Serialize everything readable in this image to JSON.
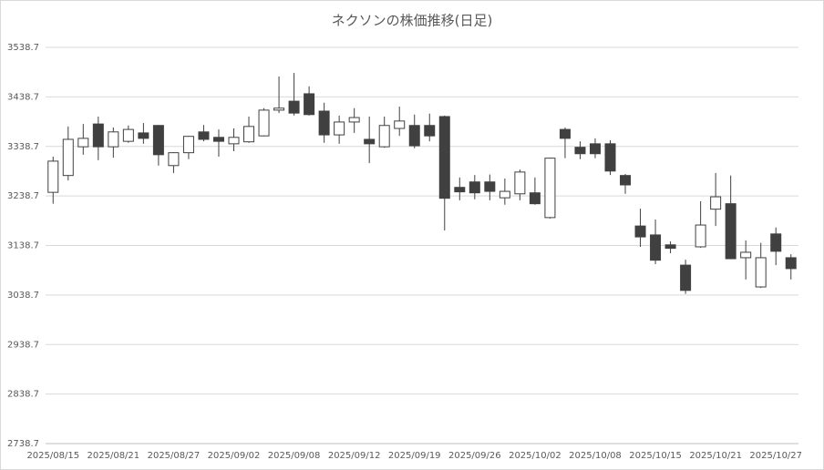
{
  "chart_data": {
    "type": "candlestick",
    "title": "ネクソンの株価推移(日足)",
    "categories": [
      "2025/08/15",
      null,
      null,
      null,
      "2025/08/21",
      null,
      null,
      null,
      "2025/08/27",
      null,
      null,
      null,
      "2025/09/02",
      null,
      null,
      null,
      "2025/09/08",
      null,
      null,
      null,
      "2025/09/12",
      null,
      null,
      null,
      "2025/09/19",
      null,
      null,
      null,
      "2025/09/26",
      null,
      null,
      null,
      "2025/10/02",
      null,
      null,
      null,
      "2025/10/08",
      null,
      null,
      null,
      "2025/10/15",
      null,
      null,
      null,
      "2025/10/21",
      null,
      null,
      null,
      "2025/10/27",
      null
    ],
    "open": [
      3246,
      3280,
      3338,
      3384,
      3338,
      3349,
      3366,
      3381,
      3300,
      3326,
      3368,
      3357,
      3344,
      3348,
      3360,
      3412,
      3430,
      3445,
      3410,
      3362,
      3388,
      3353,
      3338,
      3375,
      3381,
      3381,
      3399,
      3256,
      3267,
      3267,
      3235,
      3243,
      3245,
      3195,
      3373,
      3337,
      3344,
      3344,
      3280,
      3178,
      3160,
      3140,
      3099,
      3136,
      3212,
      3223,
      3114,
      3055,
      3162,
      3114
    ],
    "high": [
      3318,
      3379,
      3384,
      3399,
      3377,
      3381,
      3386,
      3382,
      3327,
      3360,
      3382,
      3373,
      3375,
      3399,
      3416,
      3480,
      3487,
      3460,
      3427,
      3401,
      3416,
      3399,
      3399,
      3419,
      3403,
      3405,
      3401,
      3276,
      3281,
      3282,
      3274,
      3292,
      3276,
      3316,
      3377,
      3349,
      3355,
      3351,
      3283,
      3213,
      3191,
      3147,
      3110,
      3228,
      3285,
      3280,
      3149,
      3144,
      3175,
      3121
    ],
    "low": [
      3223,
      3270,
      3322,
      3311,
      3316,
      3346,
      3344,
      3300,
      3285,
      3313,
      3349,
      3318,
      3329,
      3346,
      3359,
      3406,
      3401,
      3401,
      3346,
      3344,
      3366,
      3305,
      3336,
      3360,
      3335,
      3349,
      3169,
      3230,
      3232,
      3230,
      3221,
      3230,
      3221,
      3193,
      3315,
      3313,
      3315,
      3281,
      3243,
      3136,
      3101,
      3123,
      3041,
      3134,
      3178,
      3111,
      3070,
      3053,
      3099,
      3070
    ],
    "close": [
      3309,
      3353,
      3355,
      3338,
      3368,
      3373,
      3355,
      3322,
      3326,
      3359,
      3353,
      3349,
      3357,
      3379,
      3412,
      3416,
      3406,
      3403,
      3362,
      3388,
      3397,
      3344,
      3381,
      3390,
      3340,
      3360,
      3234,
      3247,
      3245,
      3248,
      3248,
      3287,
      3223,
      3315,
      3355,
      3324,
      3324,
      3289,
      3261,
      3156,
      3109,
      3133,
      3048,
      3180,
      3237,
      3112,
      3125,
      3114,
      3127,
      3092
    ],
    "up_color": "#ffffff",
    "down_color": "#404040",
    "edge_color": "#404040",
    "ylim": [
      2738.7,
      3538.7
    ],
    "yticks": [
      2738.7,
      2838.7,
      2938.7,
      3038.7,
      3138.7,
      3238.7,
      3338.7,
      3438.7,
      3538.7
    ],
    "grid": true
  }
}
